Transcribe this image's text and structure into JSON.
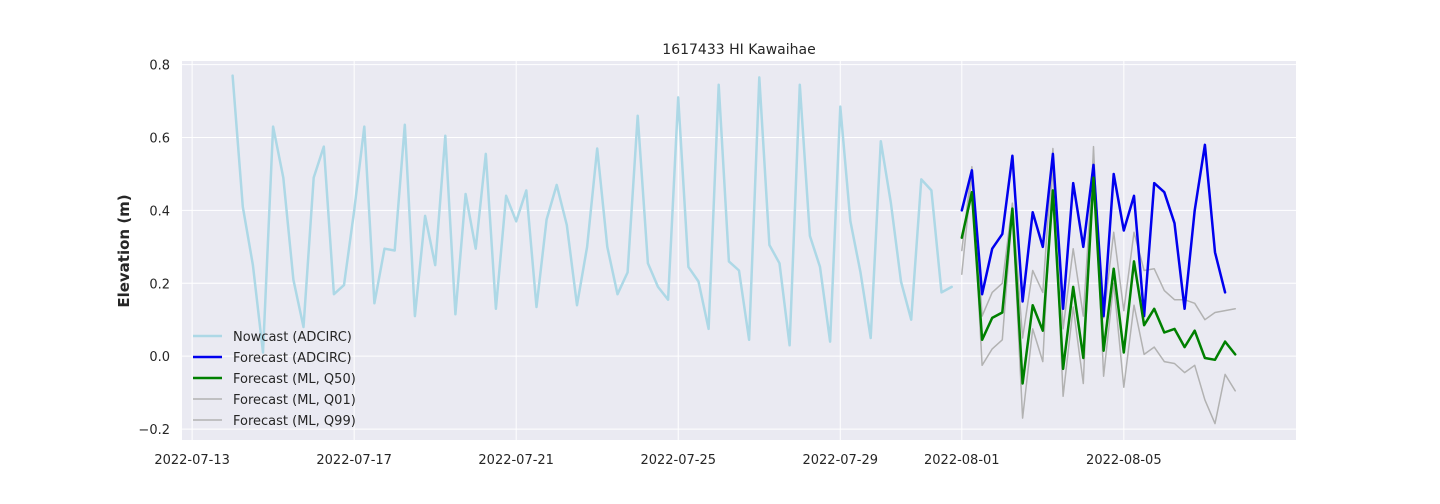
{
  "chart_data": {
    "type": "line",
    "title": "1617433 HI Kawaihae",
    "xlabel": "",
    "ylabel": "Elevation (m)",
    "x_axis": "date",
    "xlim": [
      "2022-07-12T18:00",
      "2022-08-09T06:00"
    ],
    "ylim": [
      -0.23,
      0.81
    ],
    "xticks": [
      "2022-07-13",
      "2022-07-17",
      "2022-07-21",
      "2022-07-25",
      "2022-07-29",
      "2022-08-01",
      "2022-08-05"
    ],
    "yticks": [
      -0.2,
      0.0,
      0.2,
      0.4,
      0.6,
      0.8
    ],
    "ytick_labels": [
      "−0.2",
      "0.0",
      "0.2",
      "0.4",
      "0.6",
      "0.8"
    ],
    "grid": true,
    "legend_position": "lower-left",
    "series": [
      {
        "name": "Nowcast (ADCIRC)",
        "color": "#add8e6",
        "width": 2.5,
        "x": [
          "2022-07-14T00:00",
          "2022-07-14T06:00",
          "2022-07-14T12:00",
          "2022-07-14T18:00",
          "2022-07-15T00:00",
          "2022-07-15T06:00",
          "2022-07-15T12:00",
          "2022-07-15T18:00",
          "2022-07-16T00:00",
          "2022-07-16T06:00",
          "2022-07-16T12:00",
          "2022-07-16T18:00",
          "2022-07-17T00:00",
          "2022-07-17T06:00",
          "2022-07-17T12:00",
          "2022-07-17T18:00",
          "2022-07-18T00:00",
          "2022-07-18T06:00",
          "2022-07-18T12:00",
          "2022-07-18T18:00",
          "2022-07-19T00:00",
          "2022-07-19T06:00",
          "2022-07-19T12:00",
          "2022-07-19T18:00",
          "2022-07-20T00:00",
          "2022-07-20T06:00",
          "2022-07-20T12:00",
          "2022-07-20T18:00",
          "2022-07-21T00:00",
          "2022-07-21T06:00",
          "2022-07-21T12:00",
          "2022-07-21T18:00",
          "2022-07-22T00:00",
          "2022-07-22T06:00",
          "2022-07-22T12:00",
          "2022-07-22T18:00",
          "2022-07-23T00:00",
          "2022-07-23T06:00",
          "2022-07-23T12:00",
          "2022-07-23T18:00",
          "2022-07-24T00:00",
          "2022-07-24T06:00",
          "2022-07-24T12:00",
          "2022-07-24T18:00",
          "2022-07-25T00:00",
          "2022-07-25T06:00",
          "2022-07-25T12:00",
          "2022-07-25T18:00",
          "2022-07-26T00:00",
          "2022-07-26T06:00",
          "2022-07-26T12:00",
          "2022-07-26T18:00",
          "2022-07-27T00:00",
          "2022-07-27T06:00",
          "2022-07-27T12:00",
          "2022-07-27T18:00",
          "2022-07-28T00:00",
          "2022-07-28T06:00",
          "2022-07-28T12:00",
          "2022-07-28T18:00",
          "2022-07-29T00:00",
          "2022-07-29T06:00",
          "2022-07-29T12:00",
          "2022-07-29T18:00",
          "2022-07-30T00:00",
          "2022-07-30T06:00",
          "2022-07-30T12:00",
          "2022-07-30T18:00",
          "2022-07-31T00:00",
          "2022-07-31T06:00",
          "2022-07-31T12:00",
          "2022-07-31T18:00"
        ],
        "y": [
          0.77,
          0.41,
          0.25,
          0.01,
          0.63,
          0.49,
          0.21,
          0.08,
          0.49,
          0.575,
          0.17,
          0.195,
          0.4,
          0.63,
          0.145,
          0.295,
          0.29,
          0.635,
          0.11,
          0.385,
          0.25,
          0.605,
          0.115,
          0.445,
          0.295,
          0.555,
          0.13,
          0.44,
          0.37,
          0.455,
          0.135,
          0.375,
          0.47,
          0.36,
          0.14,
          0.3,
          0.57,
          0.3,
          0.17,
          0.23,
          0.66,
          0.255,
          0.19,
          0.155,
          0.71,
          0.245,
          0.205,
          0.075,
          0.745,
          0.26,
          0.235,
          0.045,
          0.765,
          0.305,
          0.255,
          0.03,
          0.745,
          0.33,
          0.245,
          0.04,
          0.685,
          0.37,
          0.23,
          0.05,
          0.59,
          0.42,
          0.205,
          0.1,
          0.485,
          0.455,
          0.175,
          0.19
        ]
      },
      {
        "name": "Forecast (ADCIRC)",
        "color": "#0000ee",
        "width": 2.5,
        "x": [
          "2022-08-01T00:00",
          "2022-08-01T06:00",
          "2022-08-01T12:00",
          "2022-08-01T18:00",
          "2022-08-02T00:00",
          "2022-08-02T06:00",
          "2022-08-02T12:00",
          "2022-08-02T18:00",
          "2022-08-03T00:00",
          "2022-08-03T06:00",
          "2022-08-03T12:00",
          "2022-08-03T18:00",
          "2022-08-04T00:00",
          "2022-08-04T06:00",
          "2022-08-04T12:00",
          "2022-08-04T18:00",
          "2022-08-05T00:00",
          "2022-08-05T06:00",
          "2022-08-05T12:00",
          "2022-08-05T18:00",
          "2022-08-06T00:00",
          "2022-08-06T06:00",
          "2022-08-06T12:00",
          "2022-08-06T18:00",
          "2022-08-07T00:00",
          "2022-08-07T06:00",
          "2022-08-07T12:00"
        ],
        "y": [
          0.4,
          0.51,
          0.17,
          0.295,
          0.335,
          0.55,
          0.15,
          0.395,
          0.3,
          0.555,
          0.13,
          0.475,
          0.3,
          0.525,
          0.11,
          0.5,
          0.345,
          0.44,
          0.11,
          0.475,
          0.45,
          0.365,
          0.13,
          0.4,
          0.58,
          0.285,
          0.175
        ]
      },
      {
        "name": "Forecast (ML, Q50)",
        "color": "#008000",
        "width": 2.5,
        "x": [
          "2022-08-01T00:00",
          "2022-08-01T06:00",
          "2022-08-01T12:00",
          "2022-08-01T18:00",
          "2022-08-02T00:00",
          "2022-08-02T06:00",
          "2022-08-02T12:00",
          "2022-08-02T18:00",
          "2022-08-03T00:00",
          "2022-08-03T06:00",
          "2022-08-03T12:00",
          "2022-08-03T18:00",
          "2022-08-04T00:00",
          "2022-08-04T06:00",
          "2022-08-04T12:00",
          "2022-08-04T18:00",
          "2022-08-05T00:00",
          "2022-08-05T06:00",
          "2022-08-05T12:00",
          "2022-08-05T18:00",
          "2022-08-06T00:00",
          "2022-08-06T06:00",
          "2022-08-06T12:00",
          "2022-08-06T18:00",
          "2022-08-07T00:00",
          "2022-08-07T06:00",
          "2022-08-07T12:00",
          "2022-08-07T18:00"
        ],
        "y": [
          0.325,
          0.45,
          0.045,
          0.105,
          0.12,
          0.405,
          -0.075,
          0.14,
          0.07,
          0.455,
          -0.035,
          0.19,
          -0.005,
          0.49,
          0.015,
          0.24,
          0.01,
          0.26,
          0.085,
          0.13,
          0.065,
          0.075,
          0.025,
          0.07,
          -0.005,
          -0.01,
          0.04,
          0.005
        ]
      },
      {
        "name": "Forecast (ML, Q01)",
        "color": "#b2b2b2",
        "width": 1.5,
        "x": [
          "2022-08-01T00:00",
          "2022-08-01T06:00",
          "2022-08-01T12:00",
          "2022-08-01T18:00",
          "2022-08-02T00:00",
          "2022-08-02T06:00",
          "2022-08-02T12:00",
          "2022-08-02T18:00",
          "2022-08-03T00:00",
          "2022-08-03T06:00",
          "2022-08-03T12:00",
          "2022-08-03T18:00",
          "2022-08-04T00:00",
          "2022-08-04T06:00",
          "2022-08-04T12:00",
          "2022-08-04T18:00",
          "2022-08-05T00:00",
          "2022-08-05T06:00",
          "2022-08-05T12:00",
          "2022-08-05T18:00",
          "2022-08-06T00:00",
          "2022-08-06T06:00",
          "2022-08-06T12:00",
          "2022-08-06T18:00",
          "2022-08-07T00:00",
          "2022-08-07T06:00",
          "2022-08-07T12:00",
          "2022-08-07T18:00"
        ],
        "y": [
          0.225,
          0.5,
          -0.025,
          0.02,
          0.045,
          0.4,
          -0.17,
          0.075,
          -0.015,
          0.53,
          -0.11,
          0.135,
          -0.075,
          0.575,
          -0.055,
          0.2,
          -0.085,
          0.14,
          0.005,
          0.025,
          -0.015,
          -0.02,
          -0.045,
          -0.025,
          -0.12,
          -0.185,
          -0.05,
          -0.095
        ]
      },
      {
        "name": "Forecast (ML, Q99)",
        "color": "#b2b2b2",
        "width": 1.5,
        "x": [
          "2022-08-01T00:00",
          "2022-08-01T06:00",
          "2022-08-01T12:00",
          "2022-08-01T18:00",
          "2022-08-02T00:00",
          "2022-08-02T06:00",
          "2022-08-02T12:00",
          "2022-08-02T18:00",
          "2022-08-03T00:00",
          "2022-08-03T06:00",
          "2022-08-03T12:00",
          "2022-08-03T18:00",
          "2022-08-04T00:00",
          "2022-08-04T06:00",
          "2022-08-04T12:00",
          "2022-08-04T18:00",
          "2022-08-05T00:00",
          "2022-08-05T06:00",
          "2022-08-05T12:00",
          "2022-08-05T18:00",
          "2022-08-06T00:00",
          "2022-08-06T06:00",
          "2022-08-06T12:00",
          "2022-08-06T18:00",
          "2022-08-07T00:00",
          "2022-08-07T06:00",
          "2022-08-07T12:00",
          "2022-08-07T18:00"
        ],
        "y": [
          0.29,
          0.52,
          0.11,
          0.175,
          0.2,
          0.42,
          0.05,
          0.235,
          0.175,
          0.57,
          0.075,
          0.295,
          0.11,
          0.55,
          0.105,
          0.34,
          0.125,
          0.34,
          0.235,
          0.24,
          0.18,
          0.155,
          0.155,
          0.145,
          0.1,
          0.12,
          0.125,
          0.13
        ]
      }
    ]
  }
}
